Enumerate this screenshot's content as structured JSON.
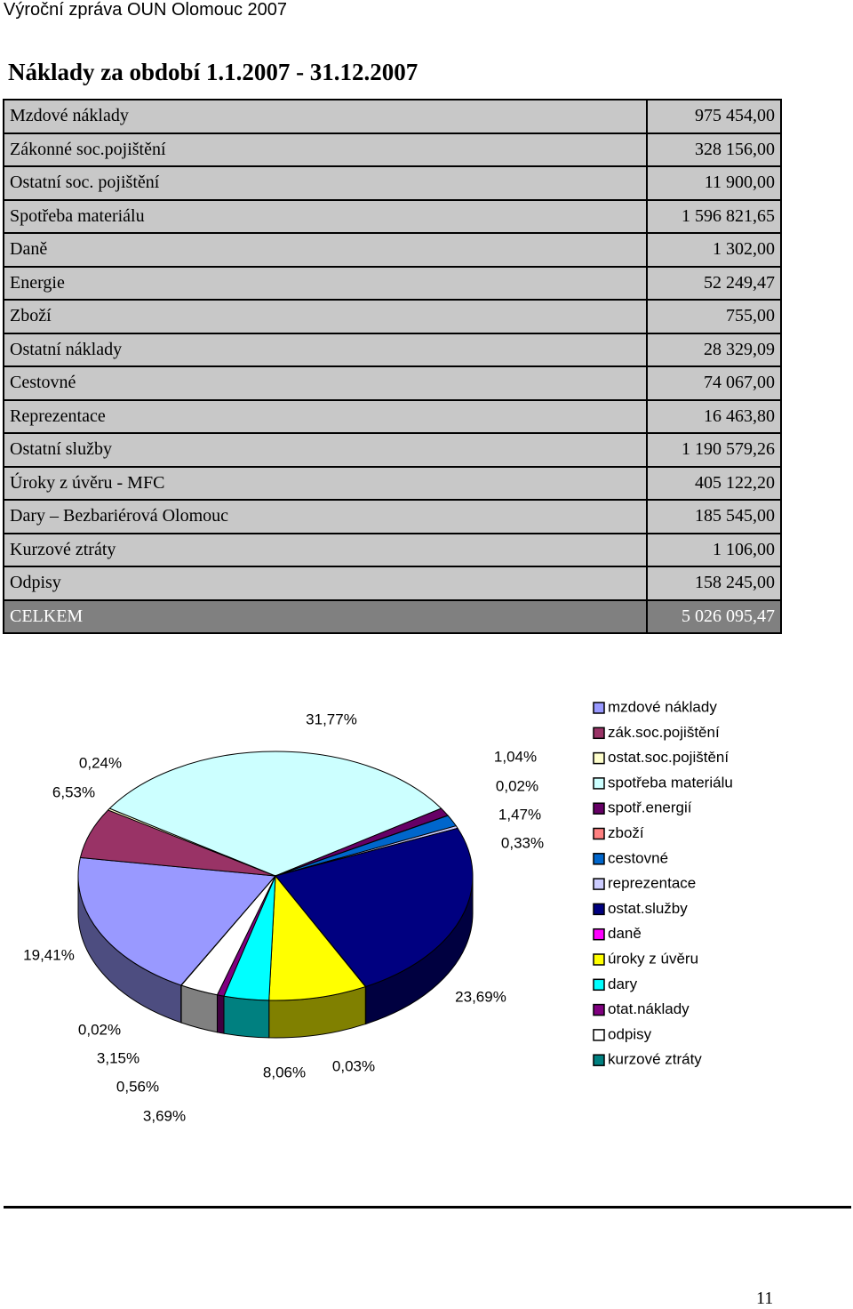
{
  "header": "Výroční zpráva OUN Olomouc 2007",
  "title": "Náklady za období 1.1.2007 - 31.12.2007",
  "table": {
    "rows": [
      [
        "Mzdové náklady",
        "975 454,00"
      ],
      [
        "Zákonné soc.pojištění",
        "328 156,00"
      ],
      [
        "Ostatní soc. pojištění",
        "11 900,00"
      ],
      [
        "Spotřeba materiálu",
        "1 596 821,65"
      ],
      [
        "Daně",
        "1 302,00"
      ],
      [
        "Energie",
        "52 249,47"
      ],
      [
        "Zboží",
        "755,00"
      ],
      [
        "Ostatní náklady",
        "28 329,09"
      ],
      [
        "Cestovné",
        "74 067,00"
      ],
      [
        "Reprezentace",
        "16 463,80"
      ],
      [
        "Ostatní služby",
        "1 190 579,26"
      ],
      [
        "Úroky z úvěru - MFC",
        "405 122,20"
      ],
      [
        "Dary – Bezbariérová Olomouc",
        "185 545,00"
      ],
      [
        "Kurzové ztráty",
        "1 106,00"
      ],
      [
        "Odpisy",
        "158 245,00"
      ]
    ],
    "total": [
      "CELKEM",
      "5 026 095,47"
    ]
  },
  "chart_data": {
    "type": "pie",
    "categories": [
      "mzdové náklady",
      "zák.soc.pojištění",
      "ostat.soc.pojištění",
      "spotřeba materiálu",
      "spotř.energií",
      "zboží",
      "cestovné",
      "reprezentace",
      "ostat.služby",
      "daně",
      "úroky z úvěru",
      "dary",
      "otat.náklady",
      "odpisy",
      "kurzové ztráty"
    ],
    "values": [
      19.41,
      6.53,
      0.24,
      31.77,
      1.04,
      0.02,
      1.47,
      0.33,
      23.69,
      0.03,
      8.06,
      3.69,
      0.56,
      3.15,
      0.02
    ],
    "value_labels": [
      "19,41%",
      "6,53%",
      "0,24%",
      "31,77%",
      "1,04%",
      "0,02%",
      "1,47%",
      "0,33%",
      "23,69%",
      "0,03%",
      "8,06%",
      "3,69%",
      "0,56%",
      "3,15%",
      "0,02%"
    ],
    "colors": [
      "#9999ff",
      "#993366",
      "#ffffcc",
      "#ccffff",
      "#660066",
      "#ff8080",
      "#0066cc",
      "#ccccff",
      "#000080",
      "#ff00ff",
      "#ffff00",
      "#00ffff",
      "#800080",
      "#ffffff",
      "#008080"
    ]
  },
  "page_number": "11"
}
